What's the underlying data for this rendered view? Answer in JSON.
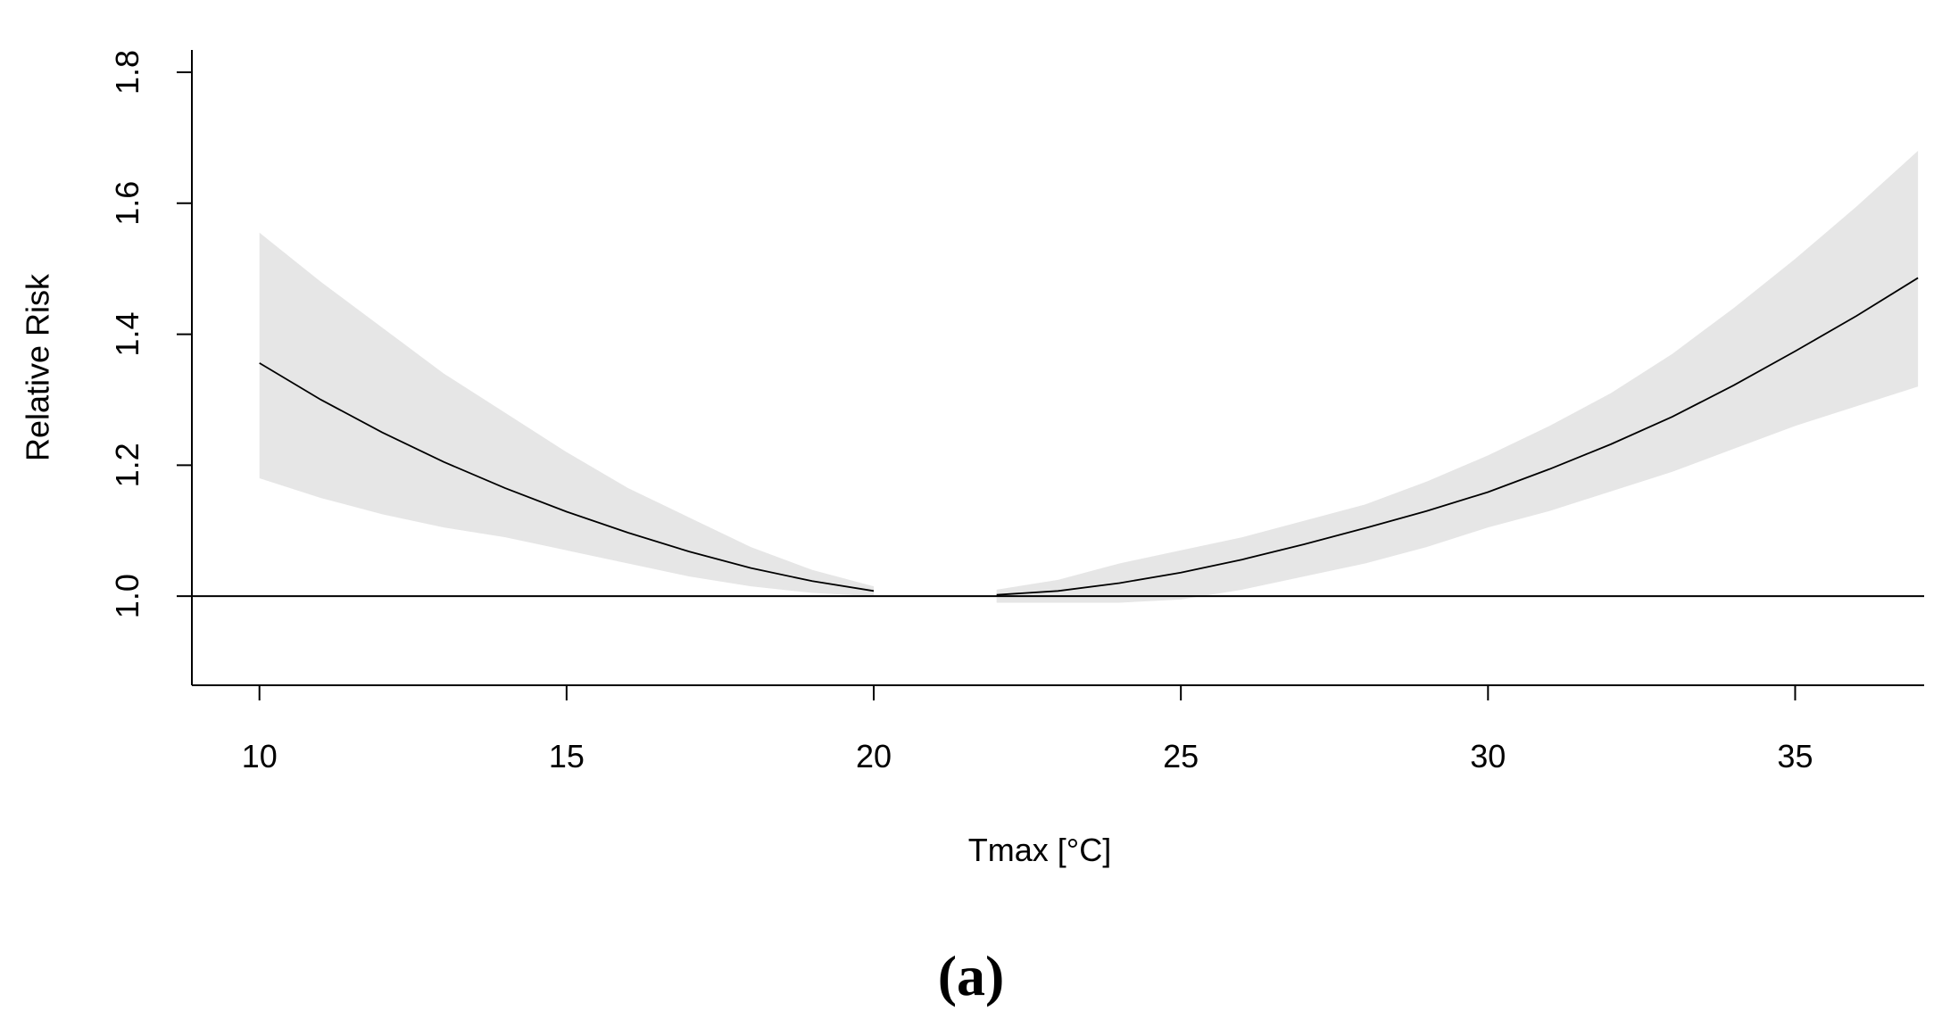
{
  "chart_data": {
    "type": "line",
    "xlabel": "Tmax [°C]",
    "ylabel": "Relative Risk",
    "caption": "(a)",
    "x": [
      10,
      11,
      12,
      13,
      14,
      15,
      16,
      17,
      18,
      19,
      20,
      21,
      22,
      23,
      24,
      25,
      26,
      27,
      28,
      29,
      30,
      31,
      32,
      33,
      34,
      35,
      36,
      37
    ],
    "values": [
      1.356,
      1.3,
      1.25,
      1.205,
      1.165,
      1.129,
      1.097,
      1.068,
      1.043,
      1.023,
      1.008,
      null,
      1.002,
      1.008,
      1.02,
      1.036,
      1.056,
      1.079,
      1.104,
      1.13,
      1.159,
      1.194,
      1.232,
      1.274,
      1.322,
      1.374,
      1.428,
      1.486
    ],
    "band_upper": [
      1.555,
      1.48,
      1.41,
      1.34,
      1.28,
      1.22,
      1.165,
      1.12,
      1.075,
      1.04,
      1.015,
      null,
      1.01,
      1.025,
      1.05,
      1.07,
      1.09,
      1.115,
      1.14,
      1.175,
      1.215,
      1.26,
      1.31,
      1.37,
      1.44,
      1.515,
      1.595,
      1.68
    ],
    "band_lower": [
      1.18,
      1.15,
      1.125,
      1.105,
      1.09,
      1.07,
      1.05,
      1.03,
      1.015,
      1.005,
      1.0,
      null,
      0.99,
      0.99,
      0.99,
      0.995,
      1.01,
      1.03,
      1.05,
      1.075,
      1.105,
      1.13,
      1.16,
      1.19,
      1.225,
      1.26,
      1.29,
      1.32
    ],
    "color": "#000000",
    "band_color": "#e6e6e6",
    "hline": 1,
    "xlim": [
      8.9,
      37.1
    ],
    "ylim": [
      0.864,
      1.834
    ],
    "xticks": [
      10,
      15,
      20,
      25,
      30,
      35
    ],
    "yticks": [
      {
        "value": 1,
        "label": "1.0"
      },
      1.2,
      1.4,
      1.6,
      1.8
    ]
  }
}
